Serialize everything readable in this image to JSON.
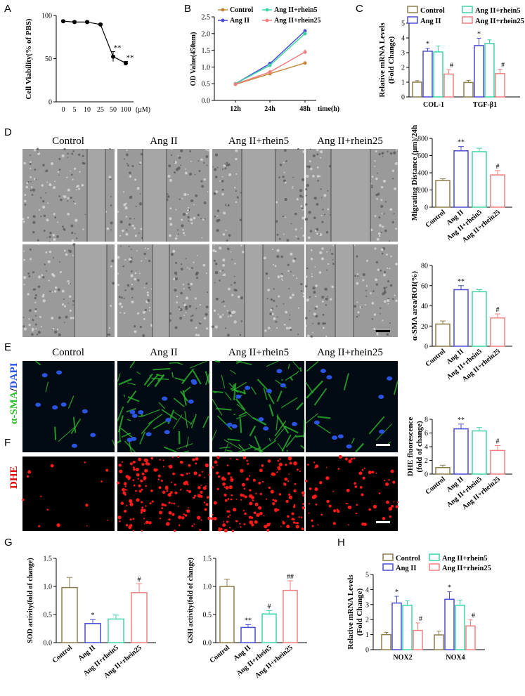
{
  "panels": {
    "A": "A",
    "B": "B",
    "C": "C",
    "D": "D",
    "E": "E",
    "F": "F",
    "G": "G",
    "H": "H"
  },
  "microscopy": {
    "columns": [
      "Control",
      "Ang II",
      "Ang II+rhein5",
      "Ang II+rhein25"
    ],
    "e_stain_alpha": "α-SMA",
    "e_stain_sep": "/",
    "e_stain_dapi": "DAPI",
    "f_stain": "DHE",
    "colors": {
      "green": "#2fbf2f",
      "blue": "#2a55e0",
      "red": "#ff1a1a"
    }
  },
  "group_colors": [
    "#8b7d4a",
    "#4b4bd6",
    "#3fd4a6",
    "#f08080"
  ],
  "chart_data": [
    {
      "id": "A",
      "type": "line",
      "x": [
        "0",
        "5",
        "10",
        "25",
        "50",
        "100"
      ],
      "y": [
        98,
        97,
        97,
        94,
        55,
        47
      ],
      "err": [
        1,
        1,
        1,
        1,
        6,
        2
      ],
      "ylabel": "Cell Viability(% of PBS)",
      "xunit": "(μM)",
      "yticks": [
        "0",
        "50",
        "100"
      ],
      "ylim": [
        0,
        105
      ],
      "annotations": [
        {
          "index": 4,
          "text": "**"
        },
        {
          "index": 5,
          "text": "**"
        }
      ]
    },
    {
      "id": "B",
      "type": "line",
      "categories": [
        "12h",
        "24h",
        "48h"
      ],
      "xunit": "time(h)",
      "ylabel": "OD Value(450nm)",
      "yticks": [
        "0.0",
        "0.5",
        "1.0",
        "1.5",
        "2.0",
        "2.5"
      ],
      "ylim": [
        0,
        2.5
      ],
      "series": [
        {
          "name": "Control",
          "values": [
            0.48,
            0.8,
            1.12
          ],
          "err": [
            0.02,
            0.03,
            0.04
          ]
        },
        {
          "name": "Ang II",
          "values": [
            0.5,
            1.1,
            2.08
          ],
          "err": [
            0.03,
            0.06,
            0.05
          ]
        },
        {
          "name": "Ang II+rhein5",
          "values": [
            0.5,
            1.05,
            2.0
          ],
          "err": [
            0.02,
            0.05,
            0.06
          ]
        },
        {
          "name": "Ang II+rhein25",
          "values": [
            0.49,
            0.85,
            1.45
          ],
          "err": [
            0.02,
            0.04,
            0.07
          ]
        }
      ]
    },
    {
      "id": "C",
      "type": "bar",
      "categories": [
        "COL-1",
        "TGF-β1"
      ],
      "ylabel": "Relative mRNA Levels (Fold Change)",
      "ylabel_lines": [
        "Relative mRNA Levels",
        "(Fold Change)"
      ],
      "yticks": [
        "0",
        "1",
        "2",
        "3",
        "4",
        "5"
      ],
      "ylim": [
        0,
        5
      ],
      "legend": [
        "Control",
        "Ang II",
        "Ang II+rhein5",
        "Ang II+rhein25"
      ],
      "values": [
        [
          1.0,
          3.1,
          3.05,
          1.55
        ],
        [
          0.98,
          3.48,
          3.62,
          1.58
        ]
      ],
      "err": [
        [
          0.1,
          0.2,
          0.4,
          0.3
        ],
        [
          0.15,
          0.5,
          0.25,
          0.3
        ]
      ],
      "annotations": [
        {
          "cat": 0,
          "group": 1,
          "text": "*"
        },
        {
          "cat": 0,
          "group": 3,
          "text": "#"
        },
        {
          "cat": 1,
          "group": 1,
          "text": "*"
        },
        {
          "cat": 1,
          "group": 3,
          "text": "#"
        }
      ]
    },
    {
      "id": "D-bar",
      "type": "bar",
      "categories": [
        "Control",
        "Ang II",
        "Ang II+rhein5",
        "Ang II+rhein25"
      ],
      "ylabel": "Migrating Distance (μm)/24h",
      "yticks": [
        "0",
        "200",
        "400",
        "600",
        "800"
      ],
      "ylim": [
        0,
        800
      ],
      "values": [
        310,
        655,
        645,
        375
      ],
      "err": [
        20,
        50,
        40,
        50
      ],
      "annotations": [
        {
          "group": 1,
          "text": "**"
        },
        {
          "group": 3,
          "text": "#"
        }
      ]
    },
    {
      "id": "E-bar",
      "type": "bar",
      "categories": [
        "Control",
        "Ang II",
        "Ang II+rhein5",
        "Ang II+rhein25"
      ],
      "ylabel": "α-SMA area/ROI(%)",
      "yticks": [
        "0",
        "20",
        "40",
        "60",
        "80"
      ],
      "ylim": [
        0,
        80
      ],
      "values": [
        22,
        56,
        54,
        28
      ],
      "err": [
        3,
        4,
        2,
        4
      ],
      "annotations": [
        {
          "group": 1,
          "text": "**"
        },
        {
          "group": 3,
          "text": "#"
        }
      ]
    },
    {
      "id": "F-bar",
      "type": "bar",
      "categories": [
        "Control",
        "Ang II",
        "Ang II+rhein5",
        "Ang II+rhein25"
      ],
      "ylabel": "DHE fluorescence (fold of change)",
      "ylabel_lines": [
        "DHE fluorescence",
        "(fold of change)"
      ],
      "yticks": [
        "0",
        "2",
        "4",
        "6",
        "8"
      ],
      "ylim": [
        0,
        8
      ],
      "values": [
        0.95,
        6.6,
        6.3,
        3.45
      ],
      "err": [
        0.35,
        0.7,
        0.5,
        0.7
      ],
      "annotations": [
        {
          "group": 1,
          "text": "**"
        },
        {
          "group": 3,
          "text": "#"
        }
      ]
    },
    {
      "id": "G-SOD",
      "type": "bar",
      "categories": [
        "Control",
        "Ang II",
        "Ang II+rhein5",
        "Ang II+rhein25"
      ],
      "ylabel": "SOD activity(fold of change)",
      "yticks": [
        "0.0",
        "0.5",
        "1.0",
        "1.5"
      ],
      "ylim": [
        0,
        1.5
      ],
      "values": [
        0.98,
        0.34,
        0.42,
        0.89
      ],
      "err": [
        0.18,
        0.07,
        0.07,
        0.16
      ],
      "annotations": [
        {
          "group": 1,
          "text": "*"
        },
        {
          "group": 3,
          "text": "#"
        }
      ]
    },
    {
      "id": "G-GSH",
      "type": "bar",
      "categories": [
        "Control",
        "Ang II",
        "Ang II+rhein5",
        "Ang II+rhein25"
      ],
      "ylabel": "GSH activity(fold of change)",
      "yticks": [
        "0.0",
        "0.5",
        "1.0",
        "1.5"
      ],
      "ylim": [
        0,
        1.5
      ],
      "values": [
        1.0,
        0.27,
        0.51,
        0.93
      ],
      "err": [
        0.13,
        0.05,
        0.06,
        0.17
      ],
      "annotations": [
        {
          "group": 1,
          "text": "**"
        },
        {
          "group": 2,
          "text": "#"
        },
        {
          "group": 3,
          "text": "##"
        }
      ]
    },
    {
      "id": "H",
      "type": "bar",
      "categories": [
        "NOX2",
        "NOX4"
      ],
      "ylabel": "Relative mRNA Levels (Fold Change)",
      "ylabel_lines": [
        "Relative mRNA Levels",
        "(Fold Change)"
      ],
      "yticks": [
        "0",
        "1",
        "2",
        "3",
        "4",
        "5"
      ],
      "ylim": [
        0,
        5
      ],
      "legend": [
        "Control",
        "Ang II",
        "Ang II+rhein5",
        "Ang II+rhein25"
      ],
      "values": [
        [
          1.0,
          3.1,
          2.95,
          1.28
        ],
        [
          0.98,
          3.35,
          2.95,
          1.58
        ]
      ],
      "err": [
        [
          0.15,
          0.45,
          0.3,
          0.5
        ],
        [
          0.25,
          0.5,
          0.35,
          0.4
        ]
      ],
      "annotations": [
        {
          "cat": 0,
          "group": 1,
          "text": "*"
        },
        {
          "cat": 0,
          "group": 3,
          "text": "#"
        },
        {
          "cat": 1,
          "group": 1,
          "text": "*"
        },
        {
          "cat": 1,
          "group": 3,
          "text": "#"
        }
      ]
    }
  ]
}
